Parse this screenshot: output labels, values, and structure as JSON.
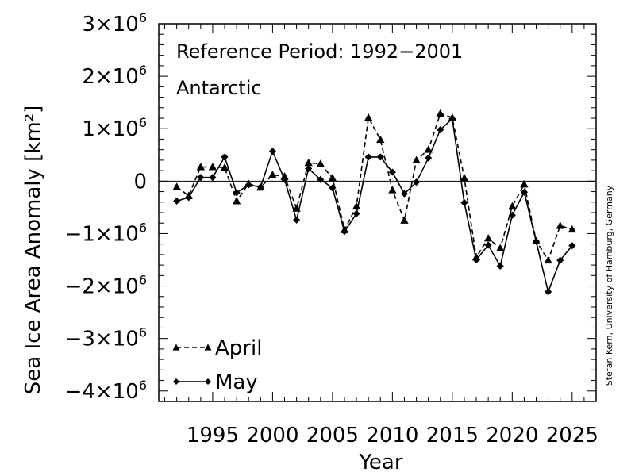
{
  "chart_data": {
    "type": "line",
    "title": "Reference Period: 1992−2001",
    "subtitle": "Antarctic",
    "xlabel": "Year",
    "ylabel": "Sea Ice Area Anomaly [km²]",
    "credit": "Stefan Kern, University of Hamburg, Germany",
    "xlim": [
      1990.5,
      2027
    ],
    "ylim": [
      -4200000,
      3000000
    ],
    "x_ticks": [
      {
        "value": 1995,
        "label": "1995"
      },
      {
        "value": 2000,
        "label": "2000"
      },
      {
        "value": 2005,
        "label": "2005"
      },
      {
        "value": 2010,
        "label": "2010"
      },
      {
        "value": 2015,
        "label": "2015"
      },
      {
        "value": 2020,
        "label": "2020"
      },
      {
        "value": 2025,
        "label": "2025"
      }
    ],
    "y_ticks": [
      {
        "value": 3000000,
        "label": "3×10",
        "exp": "6"
      },
      {
        "value": 2000000,
        "label": "2×10",
        "exp": "6"
      },
      {
        "value": 1000000,
        "label": "1×10",
        "exp": "6"
      },
      {
        "value": 0,
        "label": "0",
        "exp": ""
      },
      {
        "value": -1000000,
        "label": "−1×10",
        "exp": "6"
      },
      {
        "value": -2000000,
        "label": "−2×10",
        "exp": "6"
      },
      {
        "value": -3000000,
        "label": "−3×10",
        "exp": "6"
      },
      {
        "value": -4000000,
        "label": "−4×10",
        "exp": "6"
      }
    ],
    "zero_line": true,
    "legend_position": "bottom-left",
    "x": [
      1992,
      1993,
      1994,
      1995,
      1996,
      1997,
      1998,
      1999,
      2000,
      2001,
      2002,
      2003,
      2004,
      2005,
      2006,
      2007,
      2008,
      2009,
      2010,
      2011,
      2012,
      2013,
      2014,
      2015,
      2016,
      2017,
      2018,
      2019,
      2020,
      2021,
      2022,
      2023,
      2024,
      2025
    ],
    "series": [
      {
        "name": "April",
        "style": "dashed",
        "marker": "triangle",
        "values": [
          -110000,
          -280000,
          270000,
          270000,
          260000,
          -380000,
          -50000,
          -120000,
          120000,
          90000,
          -520000,
          350000,
          330000,
          60000,
          -930000,
          -480000,
          1210000,
          790000,
          -170000,
          -750000,
          400000,
          600000,
          1290000,
          1210000,
          60000,
          -1450000,
          -1090000,
          -1280000,
          -480000,
          -60000,
          -1140000,
          -1510000,
          -850000,
          -920000
        ]
      },
      {
        "name": "May",
        "style": "solid",
        "marker": "diamond",
        "values": [
          -380000,
          -310000,
          70000,
          70000,
          460000,
          -220000,
          -70000,
          -110000,
          570000,
          30000,
          -740000,
          240000,
          30000,
          -130000,
          -960000,
          -620000,
          460000,
          460000,
          170000,
          -240000,
          -20000,
          440000,
          980000,
          1190000,
          -410000,
          -1500000,
          -1220000,
          -1620000,
          -650000,
          -210000,
          -1150000,
          -2110000,
          -1510000,
          -1230000
        ]
      }
    ]
  }
}
